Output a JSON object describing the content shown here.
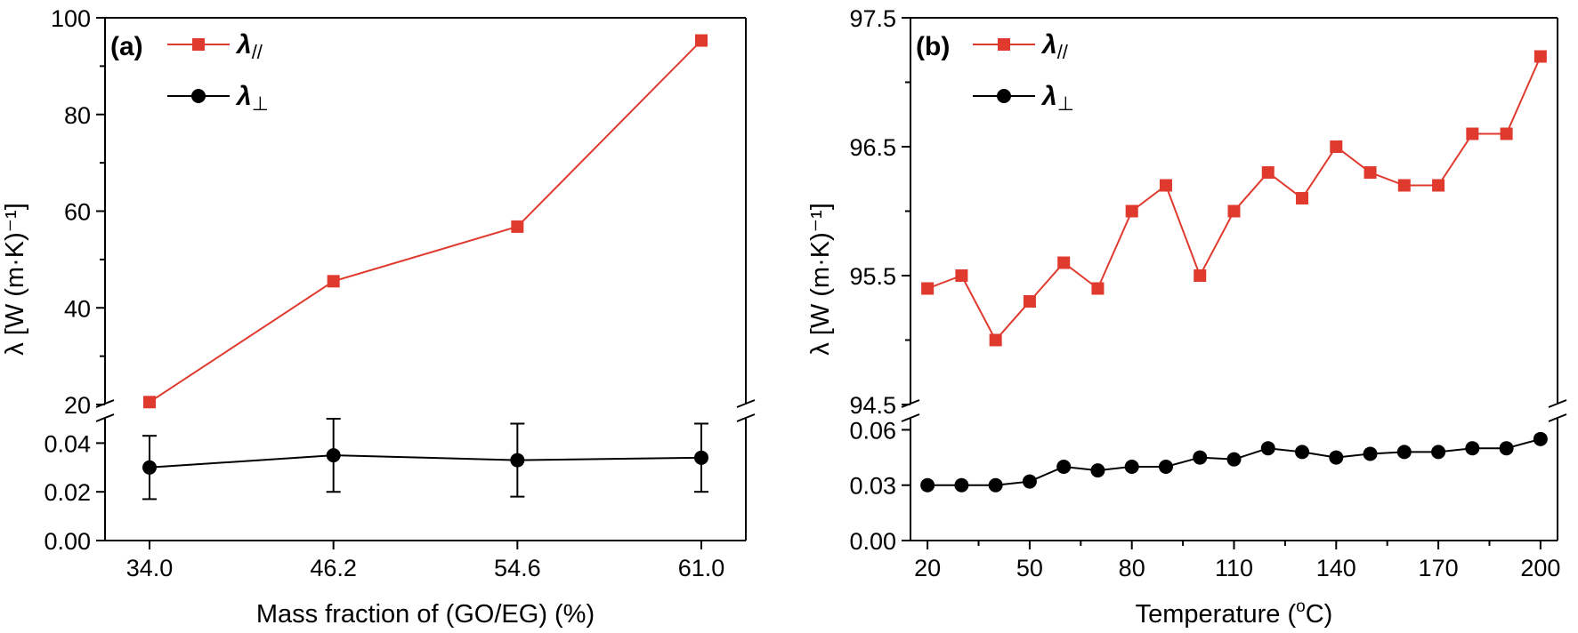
{
  "chart_data": [
    {
      "panel": "(a)",
      "type": "line",
      "title": "",
      "xlabel": "Mass fraction of (GO/EG) (%)",
      "ylabel": "λ [W (m·K)⁻¹]",
      "categories": [
        "34.0",
        "46.2",
        "54.6",
        "61.0"
      ],
      "broken_y_axis": true,
      "upper_ylim": [
        20,
        100
      ],
      "upper_ticks": [
        "20",
        "40",
        "60",
        "80",
        "100"
      ],
      "lower_ylim": [
        0.0,
        0.05
      ],
      "lower_ticks": [
        "0.00",
        "0.02",
        "0.04"
      ],
      "series": [
        {
          "name": "λ//",
          "legend_main": "λ",
          "legend_sub": "//",
          "color": "#e03a2f",
          "marker": "square",
          "segment": "upper",
          "values": [
            20.5,
            45.5,
            56.8,
            95.3
          ]
        },
        {
          "name": "λ⊥",
          "legend_main": "λ",
          "legend_sub": "⊥",
          "color": "#000000",
          "marker": "circle",
          "segment": "lower",
          "values": [
            0.03,
            0.035,
            0.033,
            0.034
          ],
          "errors": [
            0.013,
            0.015,
            0.015,
            0.014
          ]
        }
      ]
    },
    {
      "panel": "(b)",
      "type": "line",
      "title": "",
      "xlabel": "Temperature (°C)",
      "xlabel_main": "Temperature (",
      "xlabel_sup": "o",
      "xlabel_end": "C)",
      "ylabel": "λ [W (m·K)⁻¹]",
      "x": [
        20,
        30,
        40,
        50,
        60,
        70,
        80,
        90,
        100,
        110,
        120,
        130,
        140,
        150,
        160,
        170,
        180,
        190,
        200
      ],
      "xticks": [
        "20",
        "50",
        "80",
        "110",
        "140",
        "170",
        "200"
      ],
      "xlim": [
        15,
        205
      ],
      "broken_y_axis": true,
      "upper_ylim": [
        94.5,
        97.5
      ],
      "upper_ticks": [
        "94.5",
        "95.5",
        "96.5",
        "97.5"
      ],
      "lower_ylim": [
        0.0,
        0.066
      ],
      "lower_ticks": [
        "0.00",
        "0.03",
        "0.06"
      ],
      "series": [
        {
          "name": "λ//",
          "legend_main": "λ",
          "legend_sub": "//",
          "color": "#e03a2f",
          "marker": "square",
          "segment": "upper",
          "values": [
            95.4,
            95.5,
            95.0,
            95.3,
            95.6,
            95.4,
            96.0,
            96.2,
            95.5,
            96.0,
            96.3,
            96.1,
            96.5,
            96.3,
            96.2,
            96.2,
            96.6,
            96.6,
            97.2
          ]
        },
        {
          "name": "λ⊥",
          "legend_main": "λ",
          "legend_sub": "⊥",
          "color": "#000000",
          "marker": "circle",
          "segment": "lower",
          "values": [
            0.03,
            0.03,
            0.03,
            0.032,
            0.04,
            0.038,
            0.04,
            0.04,
            0.045,
            0.044,
            0.05,
            0.048,
            0.045,
            0.047,
            0.048,
            0.048,
            0.05,
            0.05,
            0.055
          ]
        }
      ]
    }
  ]
}
